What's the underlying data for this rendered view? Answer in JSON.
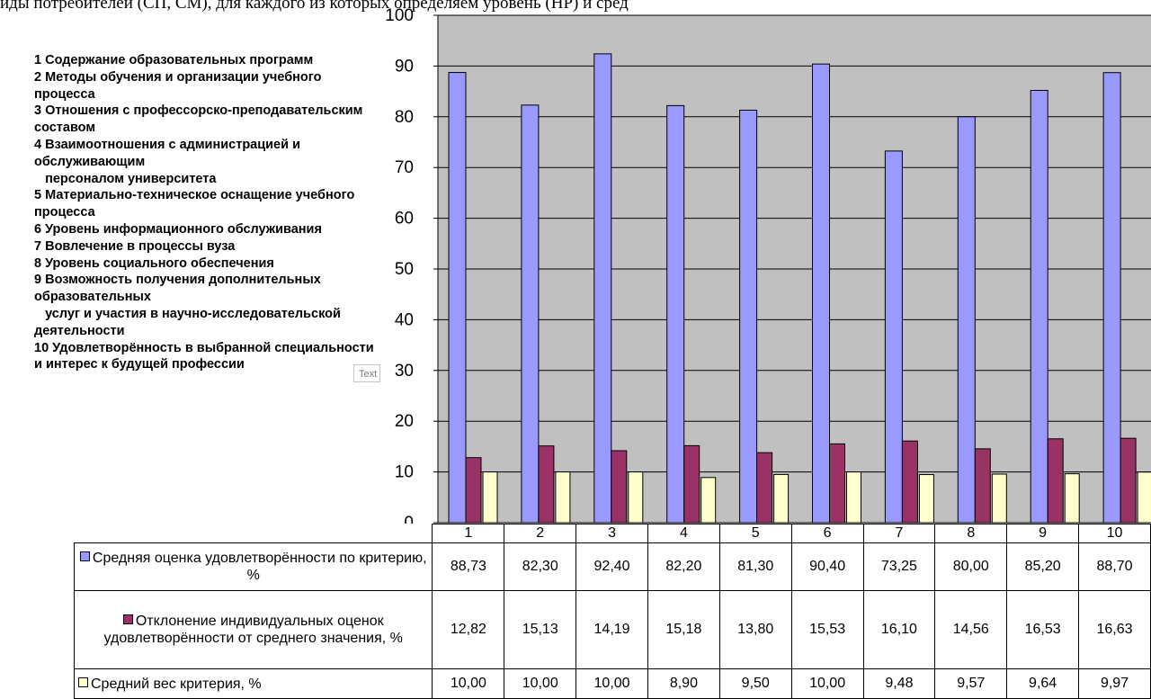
{
  "header_text": "иды потребителей   (СП, СМ), для   каждого   из    которых   определяем    уровень   (НР) и   сред",
  "text_box_label": "Text",
  "criteria": [
    "1 Содержание образовательных программ",
    "2 Методы обучения и организации учебного процесса",
    "3 Отношения с профессорско-преподавательским составом",
    "4 Взаимоотношения с администрацией и обслуживающим\n   персоналом университета",
    "5 Материально-техническое оснащение учебного процесса",
    "6 Уровень информационного обслуживания",
    "7 Вовлечение в процессы вуза",
    "8 Уровень социального обеспечения",
    "9 Возможность получения дополнительных образовательных\n   услуг и участия в научно-исследовательской деятельности",
    "10 Удовлетворённость в выбранной специальности и интерес к будущей профессии"
  ],
  "chart_data": {
    "type": "bar",
    "title": "",
    "xlabel": "",
    "ylabel": "",
    "categories": [
      "1",
      "2",
      "3",
      "4",
      "5",
      "6",
      "7",
      "8",
      "9",
      "10"
    ],
    "ylim": [
      0,
      100
    ],
    "yticks": [
      0,
      10,
      20,
      30,
      40,
      50,
      60,
      70,
      80,
      90,
      100
    ],
    "grid": true,
    "plot_background": "#c0c0c0",
    "legend_placement": "table-left",
    "series": [
      {
        "name": "Средняя оценка удовлетворённости по критерию, %",
        "color": "#9999ff",
        "values": [
          88.73,
          82.3,
          92.4,
          82.2,
          81.3,
          90.4,
          73.25,
          80.0,
          85.2,
          88.7
        ],
        "labels": [
          "88,73",
          "82,30",
          "92,40",
          "82,20",
          "81,30",
          "90,40",
          "73,25",
          "80,00",
          "85,20",
          "88,70"
        ]
      },
      {
        "name": "Отклонение индивидуальных оценок удовлетворённости от среднего значения, %",
        "color": "#993366",
        "values": [
          12.82,
          15.13,
          14.19,
          15.18,
          13.8,
          15.53,
          16.1,
          14.56,
          16.53,
          16.63
        ],
        "labels": [
          "12,82",
          "15,13",
          "14,19",
          "15,18",
          "13,80",
          "15,53",
          "16,10",
          "14,56",
          "16,53",
          "16,63"
        ]
      },
      {
        "name": "Средний  вес критерия, %",
        "color": "#ffffcc",
        "values": [
          10.0,
          10.0,
          10.0,
          8.9,
          9.5,
          10.0,
          9.48,
          9.57,
          9.64,
          9.97
        ],
        "labels": [
          "10,00",
          "10,00",
          "10,00",
          "8,90",
          "9,50",
          "10,00",
          "9,48",
          "9,57",
          "9,64",
          "9,97"
        ]
      }
    ]
  }
}
